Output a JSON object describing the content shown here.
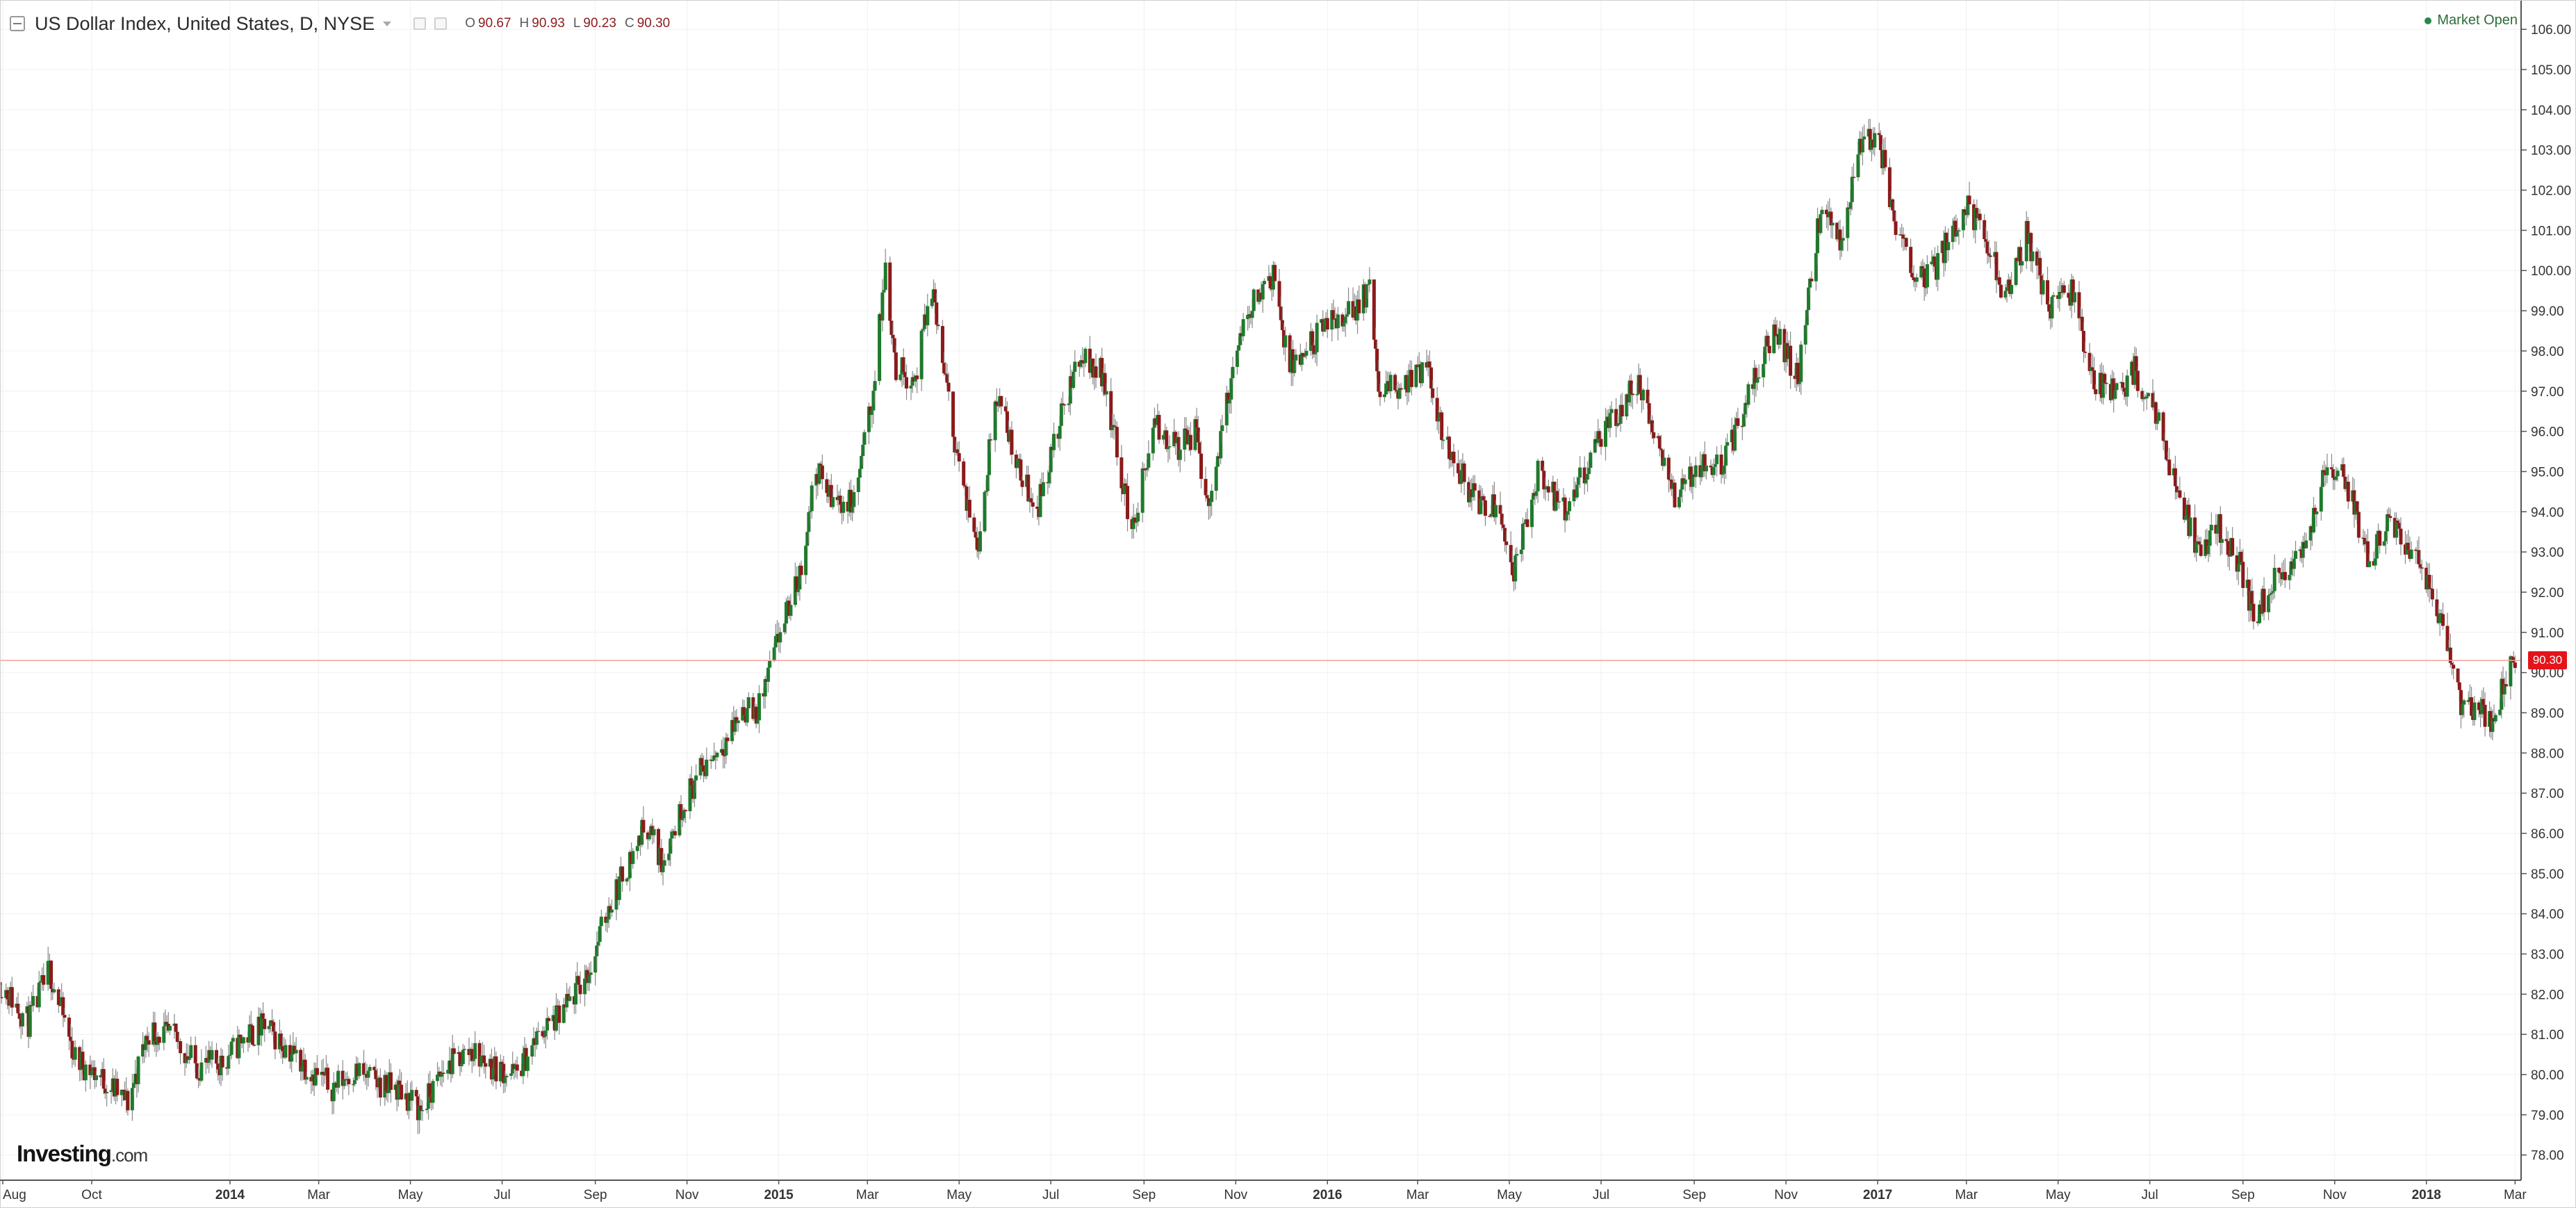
{
  "header": {
    "title": "US Dollar Index, United States, D, NYSE",
    "ohlc": [
      {
        "label": "O",
        "value": "90.67"
      },
      {
        "label": "H",
        "value": "90.93"
      },
      {
        "label": "L",
        "value": "90.23"
      },
      {
        "label": "C",
        "value": "90.30"
      }
    ],
    "market_status": "Market Open",
    "brand": "Investing",
    "brand_suffix": ".com"
  },
  "colors": {
    "up": "#1f7a2c",
    "down": "#8b1a1a",
    "wick": "#888888",
    "grid": "#f0f0f0",
    "last_price_line": "#f4a0a0",
    "last_price_tag": "#e5141b",
    "market_status": "#2f6b3a"
  },
  "chart_data": {
    "type": "candlestick",
    "instrument": "US Dollar Index",
    "interval": "D",
    "last_price": 90.3,
    "last_price_label": "90.30",
    "y_axis": {
      "min": 77.5,
      "max": 106.5,
      "position": "right",
      "ticks": [
        78,
        79,
        80,
        81,
        82,
        83,
        84,
        85,
        86,
        87,
        88,
        89,
        90,
        91,
        92,
        93,
        94,
        95,
        96,
        97,
        98,
        99,
        100,
        101,
        102,
        103,
        104,
        105,
        106
      ],
      "tick_labels": [
        "78.00",
        "79.00",
        "80.00",
        "81.00",
        "82.00",
        "83.00",
        "84.00",
        "85.00",
        "86.00",
        "87.00",
        "88.00",
        "89.00",
        "90.00",
        "91.00",
        "92.00",
        "93.00",
        "94.00",
        "95.00",
        "96.00",
        "97.00",
        "98.00",
        "99.00",
        "100.00",
        "101.00",
        "102.00",
        "103.00",
        "104.00",
        "105.00",
        "106.00"
      ]
    },
    "x_axis": {
      "start": "2013-08-01",
      "end": "2018-03-05",
      "ticks": [
        {
          "date": "2013-08-01",
          "label": "Aug",
          "bold": false
        },
        {
          "date": "2013-10-01",
          "label": "Oct",
          "bold": false
        },
        {
          "date": "2014-01-01",
          "label": "2014",
          "bold": true
        },
        {
          "date": "2014-03-01",
          "label": "Mar",
          "bold": false
        },
        {
          "date": "2014-05-01",
          "label": "May",
          "bold": false
        },
        {
          "date": "2014-07-01",
          "label": "Jul",
          "bold": false
        },
        {
          "date": "2014-09-01",
          "label": "Sep",
          "bold": false
        },
        {
          "date": "2014-11-01",
          "label": "Nov",
          "bold": false
        },
        {
          "date": "2015-01-01",
          "label": "2015",
          "bold": true
        },
        {
          "date": "2015-03-01",
          "label": "Mar",
          "bold": false
        },
        {
          "date": "2015-05-01",
          "label": "May",
          "bold": false
        },
        {
          "date": "2015-07-01",
          "label": "Jul",
          "bold": false
        },
        {
          "date": "2015-09-01",
          "label": "Sep",
          "bold": false
        },
        {
          "date": "2015-11-01",
          "label": "Nov",
          "bold": false
        },
        {
          "date": "2016-01-01",
          "label": "2016",
          "bold": true
        },
        {
          "date": "2016-03-01",
          "label": "Mar",
          "bold": false
        },
        {
          "date": "2016-05-01",
          "label": "May",
          "bold": false
        },
        {
          "date": "2016-07-01",
          "label": "Jul",
          "bold": false
        },
        {
          "date": "2016-09-01",
          "label": "Sep",
          "bold": false
        },
        {
          "date": "2016-11-01",
          "label": "Nov",
          "bold": false
        },
        {
          "date": "2017-01-01",
          "label": "2017",
          "bold": true
        },
        {
          "date": "2017-03-01",
          "label": "Mar",
          "bold": false
        },
        {
          "date": "2017-05-01",
          "label": "May",
          "bold": false
        },
        {
          "date": "2017-07-01",
          "label": "Jul",
          "bold": false
        },
        {
          "date": "2017-09-01",
          "label": "Sep",
          "bold": false
        },
        {
          "date": "2017-11-01",
          "label": "Nov",
          "bold": false
        },
        {
          "date": "2018-01-01",
          "label": "2018",
          "bold": true
        },
        {
          "date": "2018-03-01",
          "label": "Mar",
          "bold": false
        }
      ]
    },
    "grid": true,
    "trend": [
      {
        "date": "2013-08-01",
        "close": 82.3
      },
      {
        "date": "2013-08-20",
        "close": 81.3
      },
      {
        "date": "2013-09-03",
        "close": 82.6
      },
      {
        "date": "2013-09-20",
        "close": 80.4
      },
      {
        "date": "2013-10-08",
        "close": 79.9
      },
      {
        "date": "2013-10-25",
        "close": 79.3
      },
      {
        "date": "2013-11-08",
        "close": 81.1
      },
      {
        "date": "2013-11-25",
        "close": 80.9
      },
      {
        "date": "2013-12-10",
        "close": 80.2
      },
      {
        "date": "2013-12-27",
        "close": 80.3
      },
      {
        "date": "2014-01-10",
        "close": 80.9
      },
      {
        "date": "2014-01-24",
        "close": 81.2
      },
      {
        "date": "2014-02-07",
        "close": 80.7
      },
      {
        "date": "2014-02-21",
        "close": 80.2
      },
      {
        "date": "2014-03-10",
        "close": 79.7
      },
      {
        "date": "2014-03-25",
        "close": 80.1
      },
      {
        "date": "2014-04-08",
        "close": 79.8
      },
      {
        "date": "2014-04-25",
        "close": 79.6
      },
      {
        "date": "2014-05-08",
        "close": 79.1
      },
      {
        "date": "2014-05-25",
        "close": 80.2
      },
      {
        "date": "2014-06-10",
        "close": 80.6
      },
      {
        "date": "2014-06-25",
        "close": 80.2
      },
      {
        "date": "2014-07-10",
        "close": 80.0
      },
      {
        "date": "2014-07-28",
        "close": 81.1
      },
      {
        "date": "2014-08-10",
        "close": 81.5
      },
      {
        "date": "2014-08-28",
        "close": 82.6
      },
      {
        "date": "2014-09-10",
        "close": 84.2
      },
      {
        "date": "2014-09-25",
        "close": 85.4
      },
      {
        "date": "2014-10-05",
        "close": 86.3
      },
      {
        "date": "2014-10-15",
        "close": 85.3
      },
      {
        "date": "2014-10-31",
        "close": 86.9
      },
      {
        "date": "2014-11-15",
        "close": 87.8
      },
      {
        "date": "2014-11-28",
        "close": 88.4
      },
      {
        "date": "2014-12-08",
        "close": 89.1
      },
      {
        "date": "2014-12-18",
        "close": 89.0
      },
      {
        "date": "2015-01-02",
        "close": 91.0
      },
      {
        "date": "2015-01-15",
        "close": 92.4
      },
      {
        "date": "2015-01-26",
        "close": 95.1
      },
      {
        "date": "2015-02-05",
        "close": 94.3
      },
      {
        "date": "2015-02-20",
        "close": 94.2
      },
      {
        "date": "2015-03-05",
        "close": 97.0
      },
      {
        "date": "2015-03-13",
        "close": 100.1
      },
      {
        "date": "2015-03-20",
        "close": 97.6
      },
      {
        "date": "2015-04-02",
        "close": 97.3
      },
      {
        "date": "2015-04-13",
        "close": 99.6
      },
      {
        "date": "2015-04-24",
        "close": 96.7
      },
      {
        "date": "2015-05-06",
        "close": 94.1
      },
      {
        "date": "2015-05-14",
        "close": 93.3
      },
      {
        "date": "2015-05-26",
        "close": 97.0
      },
      {
        "date": "2015-06-10",
        "close": 95.0
      },
      {
        "date": "2015-06-22",
        "close": 94.1
      },
      {
        "date": "2015-07-07",
        "close": 96.2
      },
      {
        "date": "2015-07-20",
        "close": 97.9
      },
      {
        "date": "2015-08-05",
        "close": 97.4
      },
      {
        "date": "2015-08-24",
        "close": 93.5
      },
      {
        "date": "2015-09-08",
        "close": 96.1
      },
      {
        "date": "2015-09-24",
        "close": 95.6
      },
      {
        "date": "2015-10-05",
        "close": 96.0
      },
      {
        "date": "2015-10-14",
        "close": 94.1
      },
      {
        "date": "2015-10-28",
        "close": 97.1
      },
      {
        "date": "2015-11-10",
        "close": 99.1
      },
      {
        "date": "2015-11-27",
        "close": 100.0
      },
      {
        "date": "2015-12-03",
        "close": 98.1
      },
      {
        "date": "2015-12-10",
        "close": 97.5
      },
      {
        "date": "2015-12-24",
        "close": 98.3
      },
      {
        "date": "2016-01-08",
        "close": 98.8
      },
      {
        "date": "2016-01-20",
        "close": 99.1
      },
      {
        "date": "2016-01-29",
        "close": 99.6
      },
      {
        "date": "2016-02-04",
        "close": 96.9
      },
      {
        "date": "2016-02-20",
        "close": 97.2
      },
      {
        "date": "2016-03-07",
        "close": 97.5
      },
      {
        "date": "2016-03-21",
        "close": 95.6
      },
      {
        "date": "2016-04-08",
        "close": 94.3
      },
      {
        "date": "2016-04-25",
        "close": 94.2
      },
      {
        "date": "2016-05-03",
        "close": 92.4
      },
      {
        "date": "2016-05-20",
        "close": 94.9
      },
      {
        "date": "2016-06-08",
        "close": 93.9
      },
      {
        "date": "2016-06-24",
        "close": 95.4
      },
      {
        "date": "2016-07-08",
        "close": 96.2
      },
      {
        "date": "2016-07-25",
        "close": 97.2
      },
      {
        "date": "2016-08-05",
        "close": 96.0
      },
      {
        "date": "2016-08-18",
        "close": 94.4
      },
      {
        "date": "2016-09-05",
        "close": 95.2
      },
      {
        "date": "2016-09-22",
        "close": 95.3
      },
      {
        "date": "2016-10-07",
        "close": 96.9
      },
      {
        "date": "2016-10-25",
        "close": 98.6
      },
      {
        "date": "2016-11-09",
        "close": 97.3
      },
      {
        "date": "2016-11-24",
        "close": 101.5
      },
      {
        "date": "2016-12-08",
        "close": 100.7
      },
      {
        "date": "2016-12-20",
        "close": 103.3
      },
      {
        "date": "2017-01-03",
        "close": 103.0
      },
      {
        "date": "2017-01-13",
        "close": 101.2
      },
      {
        "date": "2017-01-26",
        "close": 100.0
      },
      {
        "date": "2017-02-06",
        "close": 99.9
      },
      {
        "date": "2017-02-20",
        "close": 101.0
      },
      {
        "date": "2017-03-02",
        "close": 101.7
      },
      {
        "date": "2017-03-16",
        "close": 100.5
      },
      {
        "date": "2017-03-27",
        "close": 99.4
      },
      {
        "date": "2017-04-10",
        "close": 100.9
      },
      {
        "date": "2017-04-25",
        "close": 99.1
      },
      {
        "date": "2017-05-10",
        "close": 99.5
      },
      {
        "date": "2017-05-25",
        "close": 97.3
      },
      {
        "date": "2017-06-08",
        "close": 96.9
      },
      {
        "date": "2017-06-21",
        "close": 97.5
      },
      {
        "date": "2017-07-05",
        "close": 96.4
      },
      {
        "date": "2017-07-20",
        "close": 94.5
      },
      {
        "date": "2017-08-02",
        "close": 93.0
      },
      {
        "date": "2017-08-16",
        "close": 93.6
      },
      {
        "date": "2017-08-31",
        "close": 92.6
      },
      {
        "date": "2017-09-08",
        "close": 91.4
      },
      {
        "date": "2017-09-22",
        "close": 92.3
      },
      {
        "date": "2017-10-10",
        "close": 93.0
      },
      {
        "date": "2017-10-26",
        "close": 94.9
      },
      {
        "date": "2017-11-08",
        "close": 94.8
      },
      {
        "date": "2017-11-24",
        "close": 92.8
      },
      {
        "date": "2017-12-08",
        "close": 93.9
      },
      {
        "date": "2017-12-21",
        "close": 93.1
      },
      {
        "date": "2018-01-04",
        "close": 92.1
      },
      {
        "date": "2018-01-16",
        "close": 90.4
      },
      {
        "date": "2018-01-25",
        "close": 89.0
      },
      {
        "date": "2018-02-02",
        "close": 89.1
      },
      {
        "date": "2018-02-15",
        "close": 88.8
      },
      {
        "date": "2018-02-22",
        "close": 89.9
      },
      {
        "date": "2018-03-01",
        "close": 90.3
      }
    ]
  }
}
